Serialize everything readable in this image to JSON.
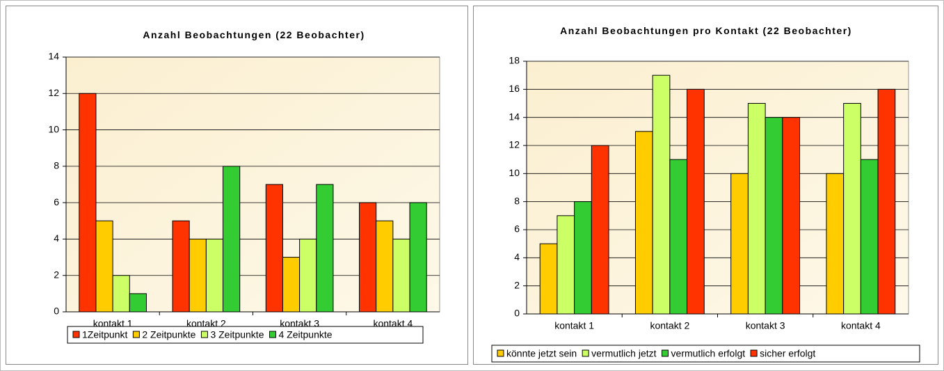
{
  "chart_data": [
    {
      "type": "bar",
      "title": "Anzahl Beobachtungen (22 Beobachter)",
      "categories": [
        "kontakt 1",
        "kontakt 2",
        "kontakt 3",
        "kontakt 4"
      ],
      "series": [
        {
          "name": "1Zeitpunkt",
          "color": "#ff3300",
          "values": [
            12,
            5,
            7,
            6
          ]
        },
        {
          "name": "2 Zeitpunkte",
          "color": "#ffcc00",
          "values": [
            5,
            4,
            3,
            5
          ]
        },
        {
          "name": "3 Zeitpunkte",
          "color": "#ccff66",
          "values": [
            2,
            4,
            4,
            4
          ]
        },
        {
          "name": "4 Zeitpunkte",
          "color": "#33cc33",
          "values": [
            1,
            8,
            7,
            6
          ]
        }
      ],
      "ylim": [
        0,
        14
      ],
      "yticks": [
        0,
        2,
        4,
        6,
        8,
        10,
        12,
        14
      ],
      "grid": true,
      "legend": "bottom"
    },
    {
      "type": "bar",
      "title": "Anzahl Beobachtungen pro Kontakt (22 Beobachter)",
      "categories": [
        "kontakt 1",
        "kontakt 2",
        "kontakt 3",
        "kontakt 4"
      ],
      "series": [
        {
          "name": "könnte jetzt sein",
          "color": "#ffcc00",
          "values": [
            5,
            13,
            10,
            10
          ]
        },
        {
          "name": "vermutlich jetzt",
          "color": "#ccff66",
          "values": [
            7,
            17,
            15,
            15
          ]
        },
        {
          "name": "vermutlich erfolgt",
          "color": "#33cc33",
          "values": [
            8,
            11,
            14,
            11
          ]
        },
        {
          "name": "sicher erfolgt",
          "color": "#ff3300",
          "values": [
            12,
            16,
            14,
            16
          ]
        }
      ],
      "ylim": [
        0,
        18
      ],
      "yticks": [
        0,
        2,
        4,
        6,
        8,
        10,
        12,
        14,
        16,
        18
      ],
      "grid": true,
      "legend": "bottom"
    }
  ]
}
